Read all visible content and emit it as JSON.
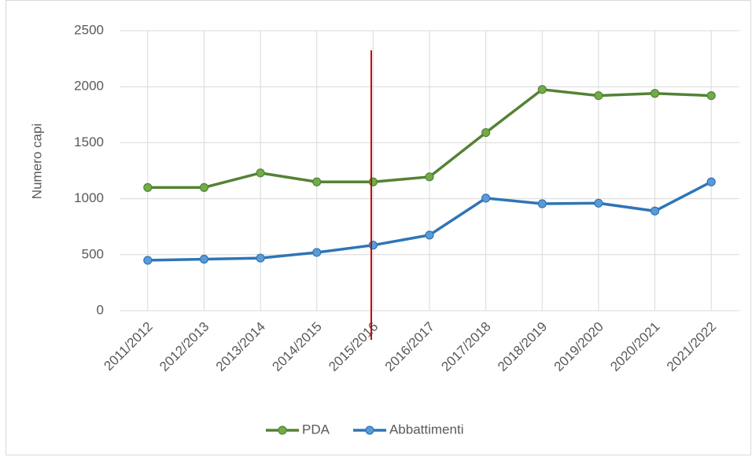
{
  "chart_data": {
    "type": "line",
    "y_label": "Numero capi",
    "categories": [
      "2011/2012",
      "2012/2013",
      "2013/2014",
      "2014/2015",
      "2015/2016",
      "2016/2017",
      "2017/2018",
      "2018/2019",
      "2019/2020",
      "2020/2021",
      "2021/2022"
    ],
    "series": [
      {
        "name": "PDA",
        "color": "#548235",
        "marker_color": "#70ad47",
        "values": [
          1100,
          1100,
          1230,
          1150,
          1150,
          1195,
          1590,
          1975,
          1920,
          1940,
          1920
        ]
      },
      {
        "name": "Abbattimenti",
        "color": "#2e75b6",
        "marker_color": "#5b9bd5",
        "values": [
          450,
          460,
          470,
          520,
          585,
          675,
          1005,
          955,
          960,
          890,
          1150
        ]
      }
    ],
    "ylim": [
      0,
      2500
    ],
    "yticks": [
      0,
      500,
      1000,
      1500,
      2000,
      2500
    ],
    "grid": true,
    "legend": "bottom"
  }
}
